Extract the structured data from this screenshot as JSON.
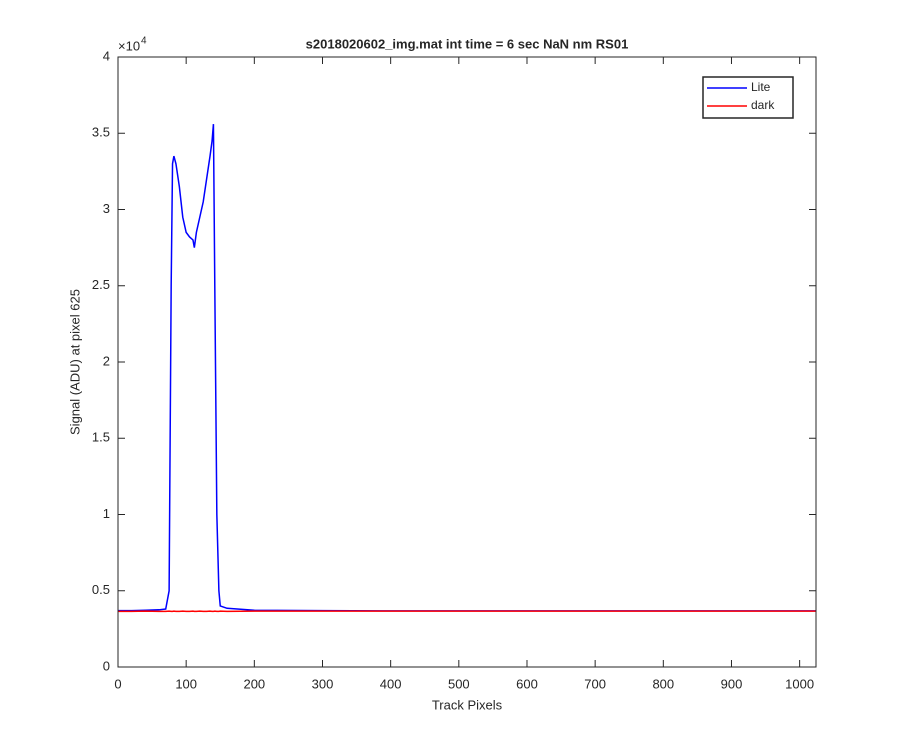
{
  "chart_data": {
    "type": "line",
    "title": "s2018020602_img.mat int time = 6 sec  NaN nm RS01",
    "x_label": "Track Pixels",
    "y_label": "Signal (ADU) at pixel 625",
    "y_multiplier": {
      "base": "×10",
      "exponent": "4"
    },
    "x": [
      0,
      20,
      40,
      60,
      70,
      75,
      78,
      80,
      82,
      85,
      90,
      95,
      100,
      105,
      110,
      112,
      115,
      120,
      125,
      130,
      135,
      138,
      140,
      142,
      145,
      148,
      150,
      160,
      200,
      300,
      400,
      500,
      600,
      700,
      800,
      900,
      1024
    ],
    "series": [
      {
        "name": "Lite",
        "color": "#0000ff",
        "values": [
          0.37,
          0.37,
          0.372,
          0.375,
          0.38,
          0.5,
          2.5,
          3.3,
          3.35,
          3.3,
          3.15,
          2.95,
          2.85,
          2.82,
          2.8,
          2.75,
          2.85,
          2.95,
          3.05,
          3.2,
          3.35,
          3.45,
          3.56,
          2.5,
          1.0,
          0.5,
          0.4,
          0.385,
          0.372,
          0.37,
          0.368,
          0.368,
          0.368,
          0.368,
          0.368,
          0.368,
          0.368
        ]
      },
      {
        "name": "dark",
        "color": "#ff0000",
        "values": [
          0.365,
          0.365,
          0.366,
          0.365,
          0.365,
          0.366,
          0.365,
          0.365,
          0.366,
          0.365,
          0.365,
          0.366,
          0.365,
          0.365,
          0.366,
          0.365,
          0.365,
          0.366,
          0.365,
          0.365,
          0.366,
          0.365,
          0.365,
          0.366,
          0.365,
          0.365,
          0.366,
          0.365,
          0.366,
          0.366,
          0.366,
          0.366,
          0.366,
          0.366,
          0.366,
          0.366,
          0.366
        ]
      }
    ],
    "xlim": [
      0,
      1024
    ],
    "ylim": [
      0,
      4
    ],
    "xticks": [
      0,
      100,
      200,
      300,
      400,
      500,
      600,
      700,
      800,
      900,
      1000
    ],
    "yticks": [
      0,
      0.5,
      1,
      1.5,
      2,
      2.5,
      3,
      3.5,
      4
    ],
    "legend": "top-right"
  }
}
